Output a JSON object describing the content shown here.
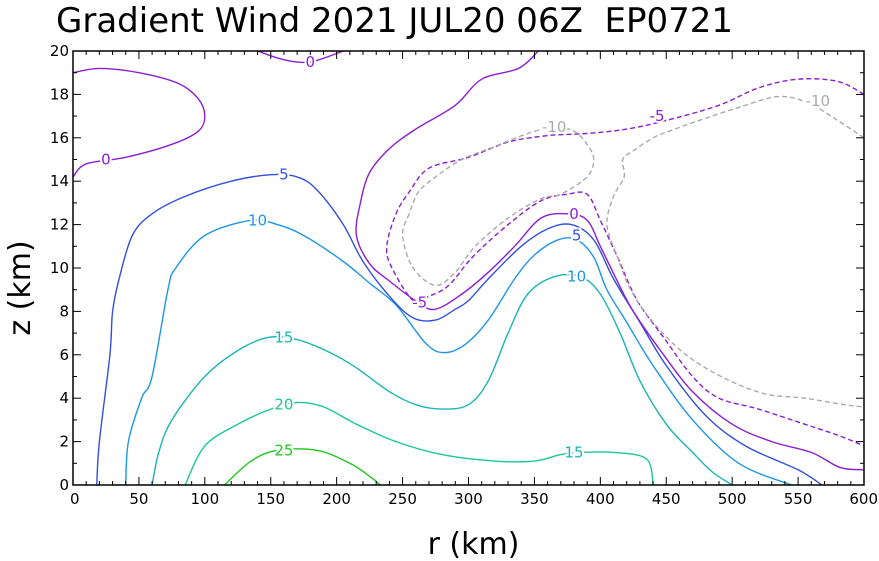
{
  "chart_data": {
    "type": "contour",
    "title": "Gradient Wind 2021 JUL20 06Z  EP0721",
    "xlabel": "r (km)",
    "ylabel": "z (km)",
    "xlim": [
      0,
      600
    ],
    "ylim": [
      0,
      20
    ],
    "x_ticks": [
      0,
      50,
      100,
      150,
      200,
      250,
      300,
      350,
      400,
      450,
      500,
      550,
      600
    ],
    "y_ticks": [
      0,
      2,
      4,
      6,
      8,
      10,
      12,
      14,
      16,
      18,
      20
    ],
    "grid": false,
    "contours": [
      {
        "level": 25,
        "style": "solid",
        "color": "#1ec81e",
        "points": [
          [
            115,
            0
          ],
          [
            135,
            1.1
          ],
          [
            155,
            1.6
          ],
          [
            185,
            1.6
          ],
          [
            210,
            1.0
          ],
          [
            225,
            0.4
          ],
          [
            233,
            0
          ]
        ]
      },
      {
        "level": 20,
        "style": "solid",
        "color": "#19c893",
        "points": [
          [
            85,
            0
          ],
          [
            100,
            1.8
          ],
          [
            125,
            2.8
          ],
          [
            150,
            3.5
          ],
          [
            170,
            3.8
          ],
          [
            190,
            3.6
          ],
          [
            215,
            2.8
          ],
          [
            245,
            2.0
          ],
          [
            280,
            1.4
          ],
          [
            320,
            1.1
          ],
          [
            350,
            1.1
          ],
          [
            370,
            1.4
          ],
          [
            385,
            1.5
          ],
          [
            410,
            1.5
          ],
          [
            435,
            1.2
          ],
          [
            440,
            0
          ]
        ]
      },
      {
        "level": 15,
        "style": "solid",
        "color": "#19b4b4",
        "points": [
          [
            60,
            0
          ],
          [
            65,
            1.5
          ],
          [
            75,
            3.0
          ],
          [
            100,
            5.0
          ],
          [
            125,
            6.2
          ],
          [
            148,
            6.8
          ],
          [
            170,
            6.7
          ],
          [
            195,
            6.1
          ],
          [
            215,
            5.4
          ],
          [
            240,
            4.3
          ],
          [
            260,
            3.7
          ],
          [
            280,
            3.5
          ],
          [
            300,
            3.7
          ],
          [
            315,
            4.8
          ],
          [
            330,
            7.0
          ],
          [
            345,
            8.8
          ],
          [
            365,
            9.6
          ],
          [
            385,
            9.6
          ],
          [
            400,
            8.8
          ],
          [
            415,
            7.0
          ],
          [
            430,
            4.8
          ],
          [
            450,
            2.8
          ],
          [
            470,
            1.5
          ],
          [
            485,
            0.6
          ],
          [
            500,
            0
          ]
        ]
      },
      {
        "level": 10,
        "style": "solid",
        "color": "#1e96e6",
        "points": [
          [
            40,
            0
          ],
          [
            42,
            2
          ],
          [
            52,
            4
          ],
          [
            60,
            5
          ],
          [
            72,
            9
          ],
          [
            78,
            10
          ],
          [
            100,
            11.5
          ],
          [
            135,
            12.2
          ],
          [
            155,
            12.0
          ],
          [
            175,
            11.5
          ],
          [
            205,
            10.3
          ],
          [
            225,
            9.3
          ],
          [
            245,
            8.3
          ],
          [
            268,
            6.5
          ],
          [
            282,
            6.1
          ],
          [
            298,
            6.5
          ],
          [
            315,
            7.6
          ],
          [
            335,
            9.5
          ],
          [
            350,
            10.6
          ],
          [
            368,
            11.3
          ],
          [
            382,
            11.3
          ],
          [
            395,
            10.5
          ],
          [
            405,
            9.0
          ],
          [
            420,
            7.5
          ],
          [
            440,
            5.5
          ],
          [
            470,
            3.0
          ],
          [
            505,
            1.0
          ],
          [
            545,
            0
          ]
        ]
      },
      {
        "level": 5,
        "style": "solid",
        "color": "#3250dc",
        "points": [
          [
            18,
            0
          ],
          [
            20,
            2
          ],
          [
            28,
            6
          ],
          [
            30,
            8
          ],
          [
            35,
            9.5
          ],
          [
            45,
            11.5
          ],
          [
            60,
            12.5
          ],
          [
            85,
            13.3
          ],
          [
            120,
            14.0
          ],
          [
            150,
            14.3
          ],
          [
            170,
            14.2
          ],
          [
            185,
            13.6
          ],
          [
            205,
            12.0
          ],
          [
            220,
            10.3
          ],
          [
            240,
            8.7
          ],
          [
            258,
            7.7
          ],
          [
            275,
            7.6
          ],
          [
            290,
            8.1
          ],
          [
            300,
            8.5
          ],
          [
            315,
            9.5
          ],
          [
            340,
            11.0
          ],
          [
            360,
            11.8
          ],
          [
            378,
            12.0
          ],
          [
            395,
            11.3
          ],
          [
            410,
            9.5
          ],
          [
            430,
            7.5
          ],
          [
            450,
            5.5
          ],
          [
            480,
            3.2
          ],
          [
            510,
            1.8
          ],
          [
            550,
            0.7
          ],
          [
            568,
            0
          ]
        ]
      },
      {
        "level": 0,
        "style": "solid",
        "color": "#8c1ed2",
        "points": [
          [
            0,
            14.2
          ],
          [
            10,
            14.8
          ],
          [
            40,
            15.1
          ],
          [
            75,
            15.7
          ],
          [
            95,
            16.3
          ],
          [
            100,
            17.0
          ],
          [
            95,
            17.8
          ],
          [
            80,
            18.5
          ],
          [
            50,
            19.0
          ],
          [
            20,
            19.2
          ],
          [
            0,
            19.0
          ]
        ]
      },
      {
        "level": 0,
        "style": "solid",
        "color": "#8c1ed2",
        "points": [
          [
            140,
            20
          ],
          [
            160,
            19.6
          ],
          [
            180,
            19.5
          ],
          [
            205,
            20
          ]
        ]
      },
      {
        "level": 0,
        "style": "solid",
        "color": "#8c1ed2",
        "points": [
          [
            353,
            20
          ],
          [
            338,
            19.2
          ],
          [
            310,
            18.7
          ],
          [
            290,
            17.5
          ],
          [
            260,
            16.4
          ],
          [
            240,
            15.5
          ],
          [
            225,
            14.4
          ],
          [
            218,
            13.0
          ],
          [
            215,
            11.5
          ],
          [
            225,
            10.2
          ],
          [
            240,
            9.4
          ],
          [
            262,
            8.4
          ],
          [
            275,
            8.1
          ],
          [
            295,
            8.8
          ],
          [
            315,
            9.8
          ],
          [
            335,
            11.0
          ],
          [
            355,
            12.3
          ],
          [
            375,
            12.5
          ],
          [
            390,
            12.2
          ],
          [
            400,
            11.0
          ],
          [
            412,
            9.5
          ],
          [
            425,
            8.0
          ],
          [
            448,
            6.0
          ],
          [
            470,
            4.3
          ],
          [
            500,
            2.8
          ],
          [
            530,
            2.0
          ],
          [
            560,
            1.5
          ],
          [
            582,
            0.8
          ],
          [
            600,
            0.7
          ]
        ]
      },
      {
        "level": -5,
        "style": "dashed",
        "color": "#8c1ed2",
        "points": [
          [
            600,
            18.0
          ],
          [
            580,
            18.6
          ],
          [
            550,
            18.7
          ],
          [
            520,
            18.3
          ],
          [
            490,
            17.5
          ],
          [
            450,
            16.8
          ],
          [
            420,
            16.4
          ],
          [
            390,
            16.2
          ],
          [
            360,
            16.1
          ],
          [
            330,
            15.8
          ],
          [
            300,
            15.1
          ],
          [
            270,
            14.6
          ],
          [
            255,
            13.5
          ],
          [
            245,
            12.5
          ],
          [
            238,
            11.0
          ],
          [
            242,
            10.0
          ],
          [
            258,
            8.5
          ],
          [
            270,
            8.7
          ],
          [
            285,
            9.2
          ],
          [
            303,
            10.5
          ],
          [
            330,
            12.0
          ],
          [
            355,
            13.1
          ],
          [
            375,
            13.4
          ],
          [
            390,
            13.4
          ],
          [
            400,
            12.2
          ],
          [
            413,
            10.5
          ],
          [
            428,
            8.5
          ],
          [
            448,
            6.8
          ],
          [
            470,
            5.0
          ],
          [
            490,
            4.0
          ],
          [
            520,
            3.5
          ],
          [
            555,
            2.8
          ],
          [
            580,
            2.3
          ],
          [
            600,
            1.8
          ]
        ]
      },
      {
        "level": -10,
        "style": "dashed",
        "color": "#aaaaaa",
        "points": [
          [
            600,
            16.0
          ],
          [
            580,
            16.8
          ],
          [
            558,
            17.6
          ],
          [
            535,
            17.9
          ],
          [
            505,
            17.4
          ],
          [
            475,
            16.8
          ],
          [
            452,
            16.3
          ],
          [
            440,
            16.0
          ],
          [
            425,
            15.4
          ],
          [
            417,
            15.0
          ],
          [
            418,
            14.2
          ],
          [
            410,
            13.3
          ],
          [
            405,
            12.0
          ],
          [
            413,
            10.5
          ],
          [
            423,
            9.0
          ],
          [
            440,
            7.5
          ],
          [
            465,
            6.0
          ],
          [
            495,
            4.9
          ],
          [
            525,
            4.2
          ],
          [
            555,
            4.0
          ],
          [
            585,
            3.7
          ],
          [
            600,
            3.6
          ]
        ]
      },
      {
        "level": -10,
        "style": "dashed",
        "color": "#aaaaaa",
        "points": [
          [
            255,
            12.5
          ],
          [
            250,
            11.5
          ],
          [
            258,
            10.0
          ],
          [
            275,
            9.2
          ],
          [
            290,
            9.8
          ],
          [
            305,
            11.0
          ],
          [
            330,
            12.3
          ],
          [
            355,
            13.2
          ],
          [
            370,
            13.4
          ],
          [
            390,
            14.2
          ],
          [
            395,
            15.0
          ],
          [
            390,
            15.7
          ],
          [
            380,
            16.3
          ],
          [
            365,
            16.5
          ],
          [
            345,
            16.2
          ],
          [
            320,
            15.6
          ],
          [
            295,
            15.0
          ],
          [
            275,
            14.2
          ],
          [
            262,
            13.5
          ],
          [
            255,
            12.5
          ]
        ]
      }
    ],
    "contour_labels": [
      {
        "text": "25",
        "x": 160,
        "y": 1.6,
        "color": "#1ec81e"
      },
      {
        "text": "20",
        "x": 160,
        "y": 3.7,
        "color": "#19c893"
      },
      {
        "text": "15",
        "x": 160,
        "y": 6.8,
        "color": "#19b4b4"
      },
      {
        "text": "15",
        "x": 380,
        "y": 1.5,
        "color": "#19b4b4"
      },
      {
        "text": "10",
        "x": 140,
        "y": 12.2,
        "color": "#1e96e6"
      },
      {
        "text": "10",
        "x": 382,
        "y": 9.6,
        "color": "#1e96e6"
      },
      {
        "text": "5",
        "x": 160,
        "y": 14.3,
        "color": "#3250dc"
      },
      {
        "text": "5",
        "x": 382,
        "y": 11.5,
        "color": "#3250dc"
      },
      {
        "text": "0",
        "x": 25,
        "y": 15.0,
        "color": "#8c1ed2"
      },
      {
        "text": "0",
        "x": 180,
        "y": 19.5,
        "color": "#8c1ed2"
      },
      {
        "text": "0",
        "x": 380,
        "y": 12.5,
        "color": "#8c1ed2"
      },
      {
        "text": "-5",
        "x": 263,
        "y": 8.4,
        "color": "#8c1ed2"
      },
      {
        "text": "-5",
        "x": 443,
        "y": 17.0,
        "color": "#8c1ed2"
      },
      {
        "text": "-10",
        "x": 365,
        "y": 16.5,
        "color": "#aaaaaa"
      },
      {
        "text": "-10",
        "x": 565,
        "y": 17.7,
        "color": "#aaaaaa"
      }
    ]
  }
}
